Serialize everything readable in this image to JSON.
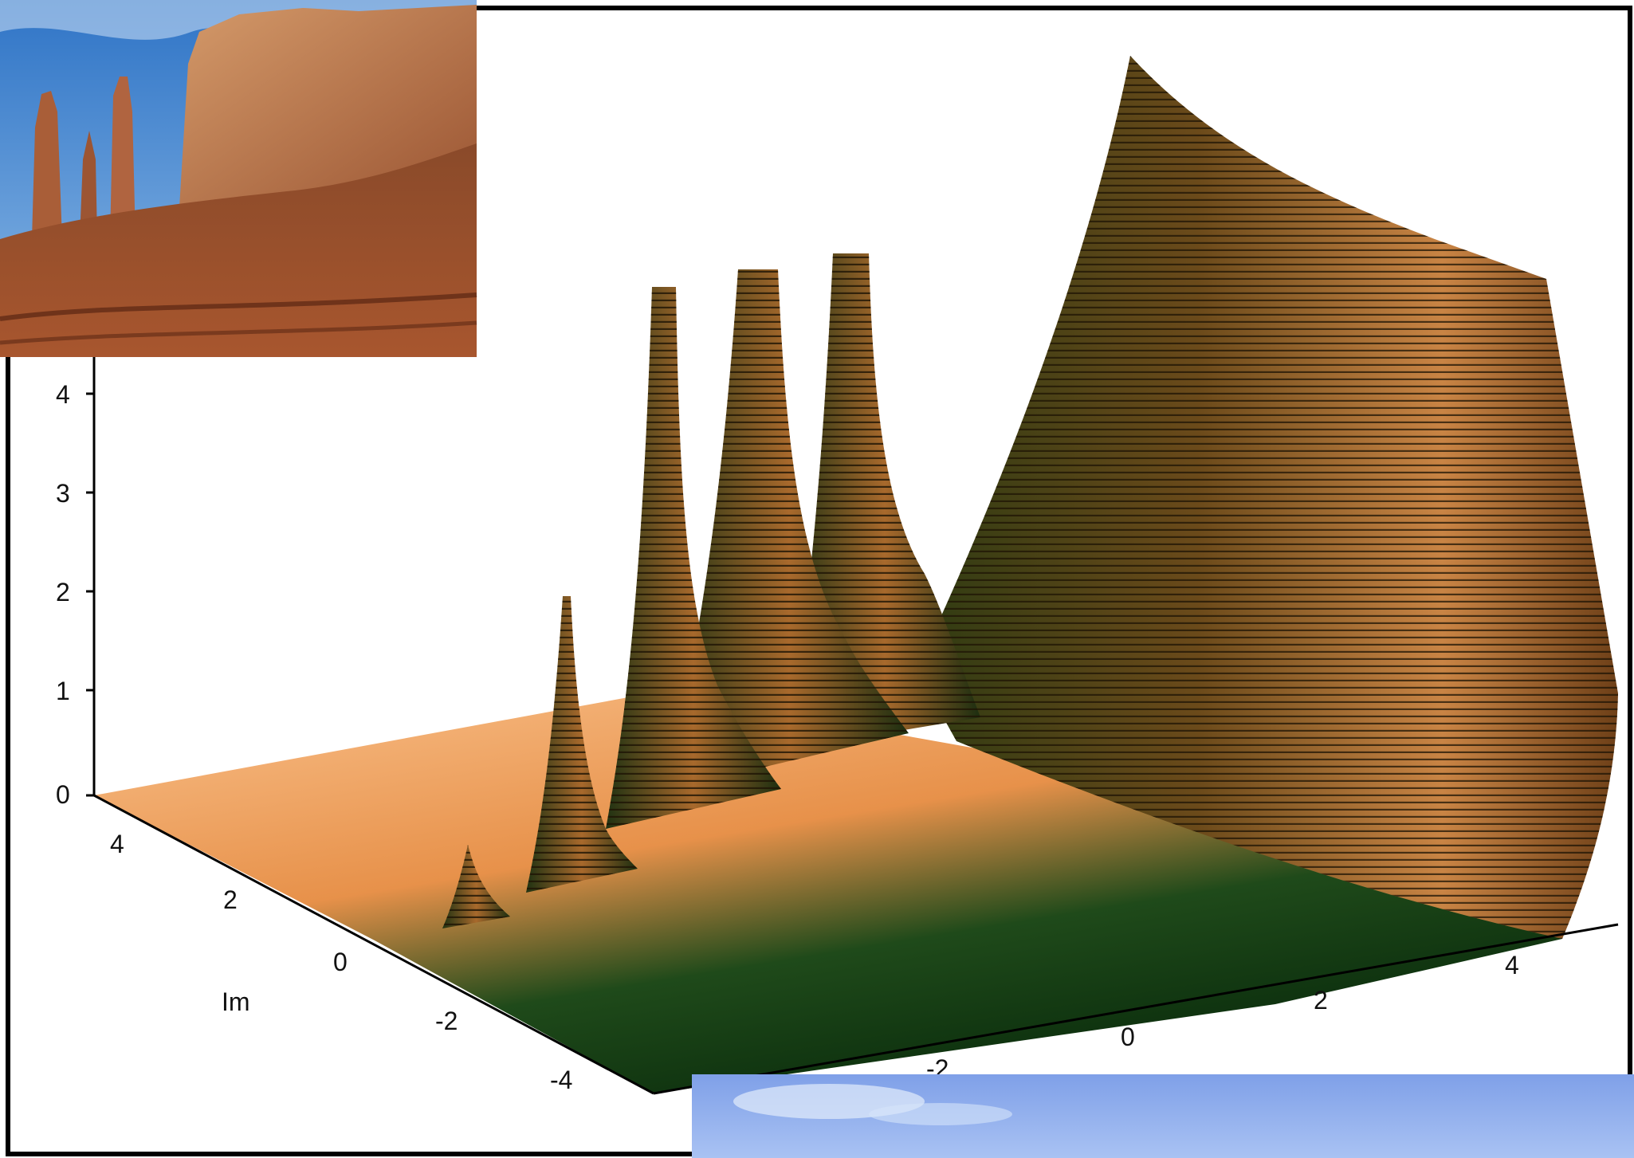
{
  "figure": {
    "z_ticks": [
      "0",
      "1",
      "2",
      "3",
      "4"
    ],
    "im_ticks": [
      "4",
      "2",
      "0",
      "-2",
      "-4"
    ],
    "im_label": "Im",
    "re_ticks": [
      "-2",
      "0",
      "2",
      "4"
    ]
  },
  "photos": [
    {
      "name": "monument-valley-photo",
      "subject": "sandstone buttes and spires under blue sky"
    },
    {
      "name": "sky-photo",
      "subject": "blue sky with light clouds"
    }
  ],
  "colors": {
    "surface_light": "#f4a860",
    "surface_dark": "#0e3a12",
    "mesh_lines": "#2a1a05",
    "frame": "#000000"
  }
}
